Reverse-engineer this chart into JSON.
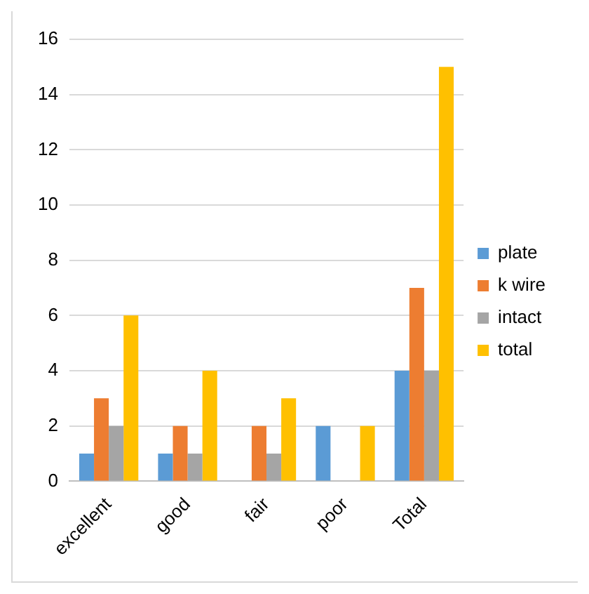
{
  "chart_data": {
    "type": "bar",
    "categories": [
      "excellent",
      "good",
      "fair",
      "poor",
      "Total"
    ],
    "series": [
      {
        "name": "plate",
        "color": "#5b9bd5",
        "values": [
          1,
          1,
          0,
          2,
          4
        ]
      },
      {
        "name": "k wire",
        "color": "#ed7d31",
        "values": [
          3,
          2,
          2,
          0,
          7
        ]
      },
      {
        "name": "intact",
        "color": "#a5a5a5",
        "values": [
          2,
          1,
          1,
          0,
          4
        ]
      },
      {
        "name": "total",
        "color": "#ffc000",
        "values": [
          6,
          4,
          3,
          2,
          15
        ]
      }
    ],
    "ylim": [
      0,
      16
    ],
    "yticks": [
      0,
      2,
      4,
      6,
      8,
      10,
      12,
      14,
      16
    ],
    "grid": "y",
    "legend": "right"
  }
}
